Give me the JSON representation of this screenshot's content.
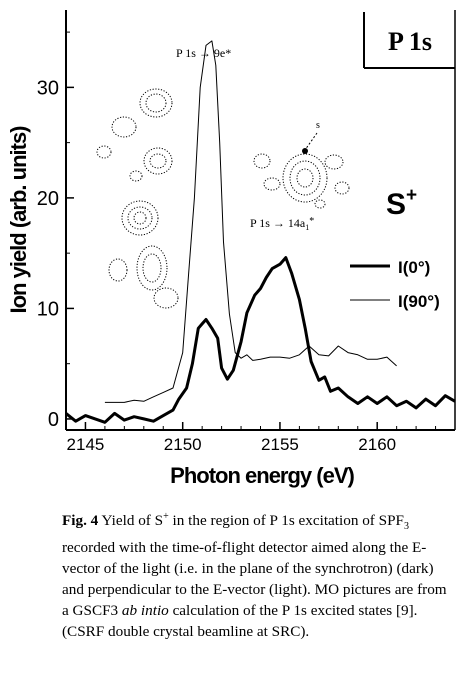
{
  "chart_data": {
    "type": "line",
    "panel_label": "P 1s",
    "ion_label": "S",
    "ion_charge": "+",
    "xlabel": "Photon energy (eV)",
    "ylabel": "Ion yield (arb. units)",
    "xlim": [
      2144,
      2164
    ],
    "ylim": [
      -1,
      37
    ],
    "xticks": [
      2145,
      2150,
      2155,
      2160
    ],
    "yticks": [
      0,
      10,
      20,
      30
    ],
    "grid": false,
    "legend_position": "right",
    "annotations": {
      "peak1": "P 1s → 9e*",
      "peak2_main": "P 1s → 14a",
      "peak2_sub": "1",
      "peak2_star": "*",
      "mo_label": "s"
    },
    "series": [
      {
        "name": "I(0°)",
        "style": "thick",
        "color": "#000000",
        "x": [
          2144.0,
          2144.5,
          2145.0,
          2145.5,
          2146.0,
          2146.5,
          2147.0,
          2147.5,
          2148.0,
          2148.5,
          2149.0,
          2149.5,
          2149.8,
          2150.2,
          2150.5,
          2150.8,
          2151.0,
          2151.2,
          2151.5,
          2151.8,
          2152.0,
          2152.3,
          2152.6,
          2153.0,
          2153.3,
          2153.7,
          2154.0,
          2154.3,
          2154.6,
          2155.0,
          2155.3,
          2155.6,
          2156.0,
          2156.3,
          2156.6,
          2157.0,
          2157.3,
          2157.6,
          2158.0,
          2158.5,
          2159.0,
          2159.5,
          2160.0,
          2160.5,
          2161.0,
          2161.5,
          2162.0,
          2162.5,
          2163.0,
          2163.5,
          2164.0
        ],
        "y": [
          0.5,
          -0.2,
          0.3,
          0.0,
          -0.3,
          0.5,
          -0.1,
          0.2,
          0.0,
          -0.2,
          0.3,
          0.8,
          1.8,
          2.8,
          5.0,
          8.2,
          8.6,
          9.0,
          8.2,
          7.3,
          4.6,
          3.6,
          4.4,
          7.0,
          9.6,
          11.2,
          11.8,
          12.8,
          13.6,
          14.0,
          14.6,
          13.2,
          10.8,
          8.2,
          5.2,
          3.5,
          3.8,
          2.5,
          2.8,
          2.0,
          1.4,
          2.0,
          1.4,
          2.0,
          1.2,
          1.6,
          1.0,
          1.8,
          1.2,
          2.1,
          1.6
        ]
      },
      {
        "name": "I(90°)",
        "style": "thin",
        "color": "#000000",
        "x": [
          2146.0,
          2146.5,
          2147.0,
          2147.5,
          2148.0,
          2148.5,
          2149.0,
          2149.5,
          2150.0,
          2150.3,
          2150.6,
          2150.9,
          2151.2,
          2151.5,
          2151.7,
          2151.9,
          2152.1,
          2152.4,
          2152.7,
          2153.0,
          2153.3,
          2153.6,
          2154.0,
          2154.5,
          2155.0,
          2155.5,
          2156.0,
          2156.5,
          2157.0,
          2157.5,
          2158.0,
          2158.5,
          2159.0,
          2159.5,
          2160.0,
          2160.5,
          2161.0
        ],
        "y": [
          1.5,
          1.5,
          1.5,
          1.7,
          1.6,
          2.0,
          2.4,
          2.8,
          6.0,
          13.0,
          20.0,
          30.0,
          33.8,
          34.2,
          32.0,
          25.0,
          16.0,
          9.5,
          6.0,
          5.5,
          5.8,
          5.3,
          5.4,
          5.6,
          5.6,
          5.5,
          5.8,
          6.6,
          5.8,
          5.7,
          6.6,
          6.0,
          5.8,
          5.4,
          5.4,
          5.6,
          4.8
        ]
      }
    ]
  },
  "caption": {
    "lead": "Fig. 4",
    "segments": [
      {
        "t": "  Yield of S"
      },
      {
        "t": "+",
        "sup": true
      },
      {
        "t": " in the region of P 1s excitation of SPF"
      },
      {
        "t": "3",
        "sub": true
      },
      {
        "t": " recorded with the time-of-flight detector aimed along the E-vector of the light (i.e. in the plane of the synchrotron)  (dark) and perpendicular to the E-vector (light). MO pictures are from a GSCF3 "
      },
      {
        "t": "ab intio",
        "italic": true
      },
      {
        "t": " calculation of the P 1s excited states [9]. (CSRF double crystal beamline at SRC)."
      }
    ]
  }
}
